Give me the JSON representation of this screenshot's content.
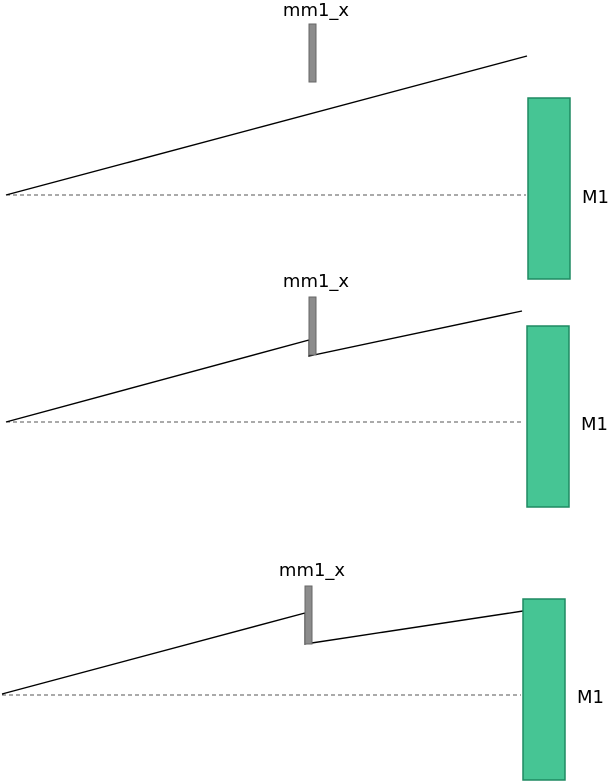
{
  "colors": {
    "mirror_fill": "#46c594",
    "mask_fill": "#8c8c8c",
    "beam": "#000000",
    "axis": "#555555"
  },
  "panels": [
    {
      "mask_label": "mm1_x",
      "mirror_label": "M1"
    },
    {
      "mask_label": "mm1_x",
      "mirror_label": "M1"
    },
    {
      "mask_label": "mm1_x",
      "mirror_label": "M1"
    }
  ]
}
